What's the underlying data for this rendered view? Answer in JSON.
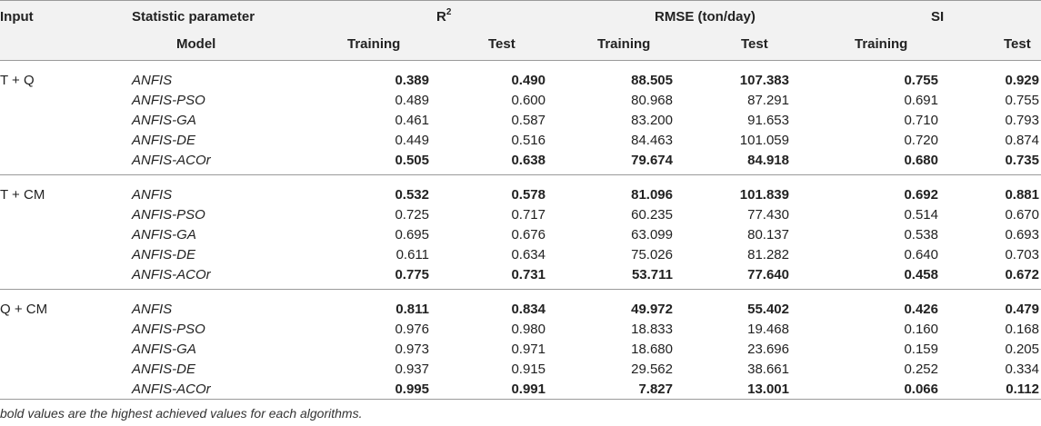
{
  "header": {
    "input_label": "Input",
    "statistic_label": "Statistic parameter",
    "model_label": "Model",
    "r2_label": "R",
    "r2_sup": "2",
    "rmse_label": "RMSE (ton/day)",
    "si_label": "SI",
    "training_label": "Training",
    "test_label": "Test"
  },
  "sections": [
    {
      "input": "T + Q",
      "rows": [
        {
          "model": "ANFIS",
          "bold": true,
          "values": [
            "0.389",
            "0.490",
            "88.505",
            "107.383",
            "0.755",
            "0.929"
          ]
        },
        {
          "model": "ANFIS-PSO",
          "bold": false,
          "values": [
            "0.489",
            "0.600",
            "80.968",
            "87.291",
            "0.691",
            "0.755"
          ]
        },
        {
          "model": "ANFIS-GA",
          "bold": false,
          "values": [
            "0.461",
            "0.587",
            "83.200",
            "91.653",
            "0.710",
            "0.793"
          ]
        },
        {
          "model": "ANFIS-DE",
          "bold": false,
          "values": [
            "0.449",
            "0.516",
            "84.463",
            "101.059",
            "0.720",
            "0.874"
          ]
        },
        {
          "model": "ANFIS-ACOr",
          "bold": true,
          "values": [
            "0.505",
            "0.638",
            "79.674",
            "84.918",
            "0.680",
            "0.735"
          ]
        }
      ]
    },
    {
      "input": "T + CM",
      "rows": [
        {
          "model": "ANFIS",
          "bold": true,
          "values": [
            "0.532",
            "0.578",
            "81.096",
            "101.839",
            "0.692",
            "0.881"
          ]
        },
        {
          "model": "ANFIS-PSO",
          "bold": false,
          "values": [
            "0.725",
            "0.717",
            "60.235",
            "77.430",
            "0.514",
            "0.670"
          ]
        },
        {
          "model": "ANFIS-GA",
          "bold": false,
          "values": [
            "0.695",
            "0.676",
            "63.099",
            "80.137",
            "0.538",
            "0.693"
          ]
        },
        {
          "model": "ANFIS-DE",
          "bold": false,
          "values": [
            "0.611",
            "0.634",
            "75.026",
            "81.282",
            "0.640",
            "0.703"
          ]
        },
        {
          "model": "ANFIS-ACOr",
          "bold": true,
          "values": [
            "0.775",
            "0.731",
            "53.711",
            "77.640",
            "0.458",
            "0.672"
          ]
        }
      ]
    },
    {
      "input": "Q + CM",
      "rows": [
        {
          "model": "ANFIS",
          "bold": true,
          "values": [
            "0.811",
            "0.834",
            "49.972",
            "55.402",
            "0.426",
            "0.479"
          ]
        },
        {
          "model": "ANFIS-PSO",
          "bold": false,
          "values": [
            "0.976",
            "0.980",
            "18.833",
            "19.468",
            "0.160",
            "0.168"
          ]
        },
        {
          "model": "ANFIS-GA",
          "bold": false,
          "values": [
            "0.973",
            "0.971",
            "18.680",
            "23.696",
            "0.159",
            "0.205"
          ]
        },
        {
          "model": "ANFIS-DE",
          "bold": false,
          "values": [
            "0.937",
            "0.915",
            "29.562",
            "38.661",
            "0.252",
            "0.334"
          ]
        },
        {
          "model": "ANFIS-ACOr",
          "bold": true,
          "values": [
            "0.995",
            "0.991",
            "7.827",
            "13.001",
            "0.066",
            "0.112"
          ]
        }
      ]
    }
  ],
  "footnote": "bold values are the highest achieved values for each algorithms."
}
